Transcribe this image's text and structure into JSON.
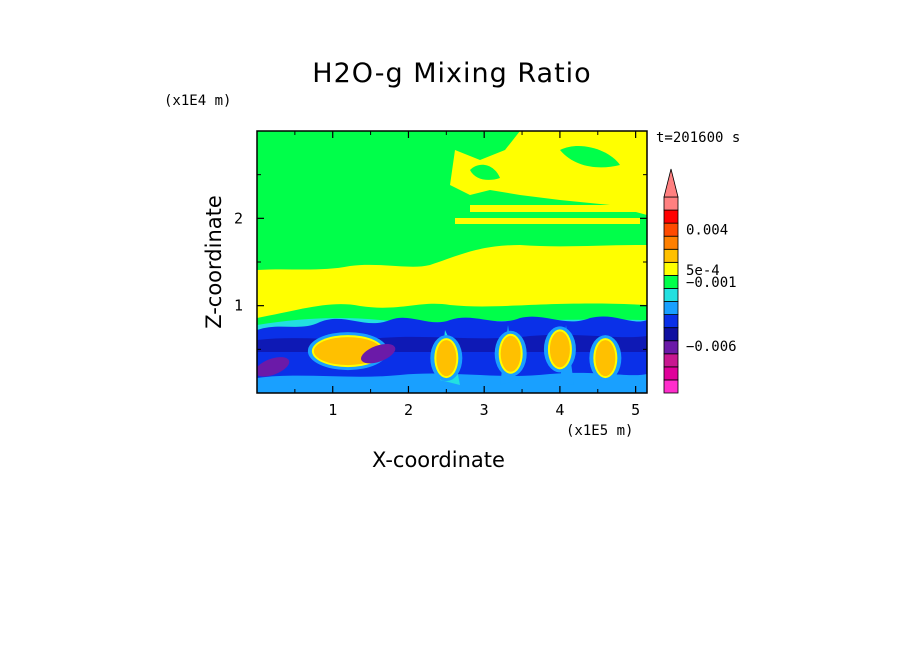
{
  "chart_data": {
    "type": "heatmap",
    "title": "H2O-g Mixing Ratio",
    "xlabel": "X-coordinate",
    "ylabel": "Z-coordinate",
    "x_unit_label": "(x1E5 m)",
    "y_unit_label": "(x1E4 m)",
    "timestamp": "t=201600 s",
    "xlim": [
      0,
      5.15
    ],
    "ylim": [
      0,
      3.0
    ],
    "x_ticks": [
      1,
      2,
      3,
      4,
      5
    ],
    "x_tick_labels": [
      "1",
      "2",
      "3",
      "4",
      "5"
    ],
    "y_ticks": [
      1,
      2
    ],
    "y_tick_labels": [
      "1",
      "2"
    ],
    "colorbar": {
      "levels": [
        {
          "color": "#ff2ecc"
        },
        {
          "color": "#e0009a"
        },
        {
          "color": "#c81890"
        },
        {
          "color": "#6b1aa8"
        },
        {
          "color": "#1010a0"
        },
        {
          "color": "#0a30e8"
        },
        {
          "color": "#19a0ff"
        },
        {
          "color": "#22e0e0"
        },
        {
          "color": "#00ff4a"
        },
        {
          "color": "#ffff00"
        },
        {
          "color": "#ffc000"
        },
        {
          "color": "#ff8000"
        },
        {
          "color": "#ff4a00"
        },
        {
          "color": "#ff0000"
        },
        {
          "color": "#ff8080"
        }
      ],
      "labels": [
        {
          "text": "0.004",
          "level": 12.5
        },
        {
          "text": "5e-4",
          "level": 9.4
        },
        {
          "text": "−0.001",
          "level": 8.5
        },
        {
          "text": "−0.006",
          "level": 3.6
        }
      ],
      "extend": "max"
    },
    "regions": [
      {
        "name": "upper-layer",
        "z_range": [
          1.2,
          3.0
        ],
        "value_color": "#00ff4a"
      },
      {
        "name": "upper-moist-patch",
        "x_range": [
          2.5,
          5.15
        ],
        "z_range": [
          2.3,
          3.0
        ],
        "value_color": "#ffff00"
      },
      {
        "name": "middle-layer",
        "z_range": [
          0.8,
          1.6
        ],
        "value_color": "#ffff00"
      },
      {
        "name": "boundary-layer",
        "z_range": [
          0,
          0.8
        ],
        "value_color": "#0a30e8"
      }
    ],
    "blobs": [
      {
        "x": 1.2,
        "z": 0.48,
        "color": "#ffc000"
      },
      {
        "x": 1.6,
        "z": 0.45,
        "color": "#6b1aa8"
      },
      {
        "x": 2.5,
        "z": 0.4,
        "color": "#ffc000"
      },
      {
        "x": 3.35,
        "z": 0.45,
        "color": "#ffc000"
      },
      {
        "x": 4.0,
        "z": 0.5,
        "color": "#ffc000"
      },
      {
        "x": 4.6,
        "z": 0.4,
        "color": "#ffc000"
      },
      {
        "x": 0.2,
        "z": 0.3,
        "color": "#6b1aa8"
      }
    ]
  }
}
